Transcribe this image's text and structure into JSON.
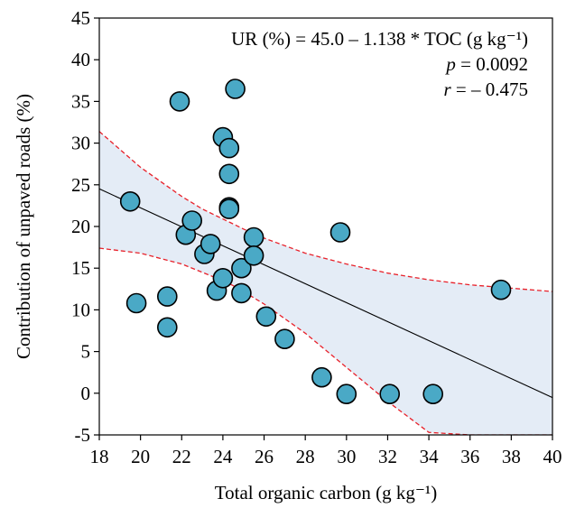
{
  "chart_data": {
    "type": "scatter",
    "xlabel": "Total organic carbon (g kg⁻¹)",
    "ylabel": "Contribution of unpaved roads (%)",
    "xlim": [
      18,
      40
    ],
    "ylim": [
      -5,
      45
    ],
    "xticks": [
      "18",
      "20",
      "22",
      "24",
      "26",
      "28",
      "30",
      "32",
      "34",
      "36",
      "38",
      "40"
    ],
    "yticks": [
      "-5",
      "0",
      "5",
      "10",
      "15",
      "20",
      "25",
      "30",
      "35",
      "40",
      "45"
    ],
    "grid": false,
    "colors": {
      "marker_fill": "#4aa9c6",
      "marker_edge": "#000000",
      "band_fill": "#e4ecf6",
      "ci_line": "#e8212a",
      "fit_line": "#000000"
    },
    "annotations": {
      "equation": "UR (%) = 45.0 – 1.138 * TOC (g kg⁻¹)",
      "p_label": "p",
      "p_value": " = 0.0092",
      "r_label": "r",
      "r_value": " = – 0.475"
    },
    "regression": {
      "intercept": 45.0,
      "slope": -1.138
    },
    "confidence_band": {
      "x": [
        18,
        20,
        22,
        23,
        24,
        24.5,
        25,
        26,
        28,
        30,
        32,
        34,
        36,
        38,
        40
      ],
      "upper": [
        31.4,
        27.1,
        23.6,
        22.1,
        20.9,
        20.3,
        19.7,
        18.6,
        16.8,
        15.5,
        14.4,
        13.6,
        13.0,
        12.6,
        12.2
      ],
      "lower": [
        17.4,
        16.8,
        15.5,
        14.5,
        13.5,
        12.9,
        12.2,
        10.7,
        7.2,
        3.1,
        -1.0,
        -4.7,
        -5.0,
        -5.0,
        -5.0
      ]
    },
    "points": [
      {
        "x": 19.5,
        "y": 23.0
      },
      {
        "x": 19.8,
        "y": 10.8
      },
      {
        "x": 21.3,
        "y": 11.6
      },
      {
        "x": 21.3,
        "y": 7.9
      },
      {
        "x": 21.9,
        "y": 35.0
      },
      {
        "x": 22.2,
        "y": 19.0
      },
      {
        "x": 22.5,
        "y": 20.7
      },
      {
        "x": 23.1,
        "y": 16.7
      },
      {
        "x": 23.4,
        "y": 17.9
      },
      {
        "x": 23.7,
        "y": 12.3
      },
      {
        "x": 24.0,
        "y": 30.7
      },
      {
        "x": 24.0,
        "y": 13.8
      },
      {
        "x": 24.3,
        "y": 29.4
      },
      {
        "x": 24.3,
        "y": 26.3
      },
      {
        "x": 24.3,
        "y": 22.3
      },
      {
        "x": 24.3,
        "y": 22.1
      },
      {
        "x": 24.6,
        "y": 36.5
      },
      {
        "x": 24.9,
        "y": 15.0
      },
      {
        "x": 24.9,
        "y": 12.0
      },
      {
        "x": 25.5,
        "y": 18.7
      },
      {
        "x": 25.5,
        "y": 16.5
      },
      {
        "x": 26.1,
        "y": 9.2
      },
      {
        "x": 27.0,
        "y": 6.5
      },
      {
        "x": 28.8,
        "y": 1.9
      },
      {
        "x": 29.7,
        "y": 19.3
      },
      {
        "x": 30.0,
        "y": -0.1
      },
      {
        "x": 32.1,
        "y": -0.1
      },
      {
        "x": 34.2,
        "y": -0.1
      },
      {
        "x": 37.5,
        "y": 12.4
      }
    ]
  }
}
